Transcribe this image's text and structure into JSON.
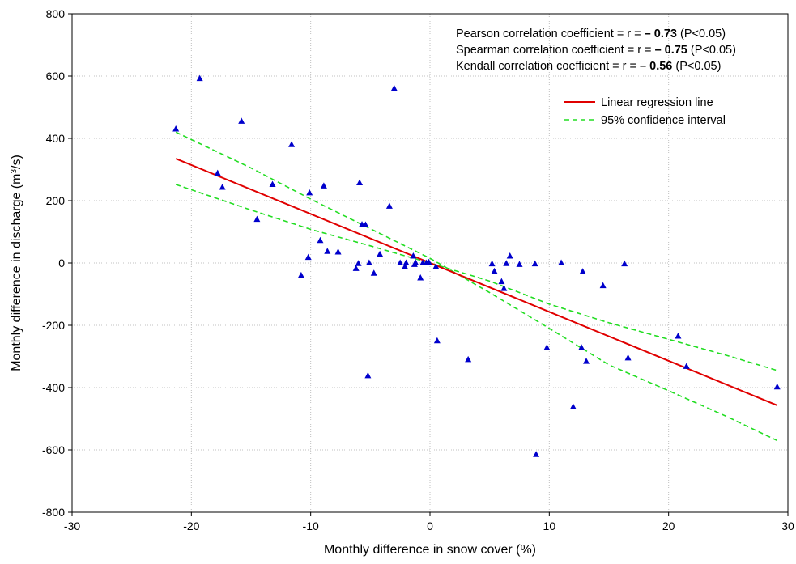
{
  "chart_data": {
    "type": "scatter",
    "xlabel": "Monthly difference in snow cover (%)",
    "ylabel": {
      "pre": "Monthly difference in discharge (m",
      "sup": "3",
      "post": "/s)"
    },
    "xlim": [
      -30,
      30
    ],
    "ylim": [
      -800,
      800
    ],
    "xticks": [
      -30,
      -20,
      -10,
      0,
      10,
      20,
      30
    ],
    "yticks": [
      -800,
      -600,
      -400,
      -200,
      0,
      200,
      400,
      600,
      800
    ],
    "grid": true,
    "legend_position": "top-right",
    "colors": {
      "points": "#0000cc",
      "regression": "#e00000",
      "confidence": "#22dd22",
      "grid": "#c0c0c0"
    },
    "annotations": [
      {
        "pre": "Pearson correlation coefficient = r = ",
        "value": "– 0.73",
        "post": " (P<0.05)"
      },
      {
        "pre": "Spearman correlation coefficient = r = ",
        "value": "– 0.75",
        "post": " (P<0.05)"
      },
      {
        "pre": "Kendall correlation coefficient = r = ",
        "value": "– 0.56",
        "post": " (P<0.05)"
      }
    ],
    "legend": [
      {
        "label": "Linear regression line",
        "style": "solid",
        "color": "#e00000"
      },
      {
        "label": "95% confidence interval",
        "style": "dashed",
        "color": "#22dd22"
      }
    ],
    "regression_line": {
      "x": [
        -21.3,
        29.1
      ],
      "y": [
        335,
        -457
      ]
    },
    "confidence_upper": {
      "x": [
        -21.3,
        -15,
        -10,
        -5,
        0,
        5,
        10,
        15,
        20,
        25,
        29.1
      ],
      "y": [
        420,
        305,
        205,
        110,
        15,
        -95,
        -210,
        -327,
        -410,
        -495,
        -570
      ]
    },
    "confidence_lower": {
      "x": [
        -21.3,
        -15,
        -10,
        -5,
        0,
        5,
        10,
        15,
        20,
        25,
        29.1
      ],
      "y": [
        252,
        170,
        108,
        55,
        0,
        -58,
        -132,
        -192,
        -245,
        -298,
        -345
      ]
    },
    "points": {
      "x": [
        -21.3,
        -19.3,
        -15.8,
        -17.8,
        -17.4,
        -14.5,
        -13.2,
        -11.6,
        -10.8,
        -10.2,
        -10.1,
        -9.2,
        -8.9,
        -8.6,
        -7.7,
        -6.2,
        -6.0,
        -5.9,
        -5.7,
        -5.4,
        -5.1,
        -5.2,
        -4.7,
        -4.2,
        -3.4,
        -3.0,
        -2.5,
        -2.1,
        -2.0,
        -1.4,
        -1.3,
        -1.2,
        -0.8,
        -0.6,
        -0.3,
        -0.1,
        0.5,
        0.6,
        3.2,
        5.2,
        5.4,
        6.0,
        6.2,
        6.4,
        6.7,
        7.5,
        8.8,
        9.8,
        11.0,
        12.0,
        12.7,
        12.8,
        13.1,
        14.5,
        16.3,
        16.6,
        20.8,
        21.5,
        29.1,
        8.9
      ],
      "y": [
        430,
        592,
        455,
        288,
        243,
        140,
        252,
        380,
        -40,
        18,
        225,
        72,
        247,
        37,
        35,
        -18,
        -2,
        257,
        123,
        122,
        0,
        -362,
        -33,
        28,
        182,
        560,
        0,
        -12,
        0,
        22,
        -5,
        0,
        -48,
        0,
        0,
        2,
        -12,
        -250,
        -310,
        -3,
        -27,
        -60,
        -82,
        -2,
        22,
        -5,
        -3,
        -272,
        0,
        -462,
        -272,
        -28,
        -316,
        -73,
        -3,
        -305,
        -235,
        -332,
        -398,
        -615
      ]
    }
  }
}
